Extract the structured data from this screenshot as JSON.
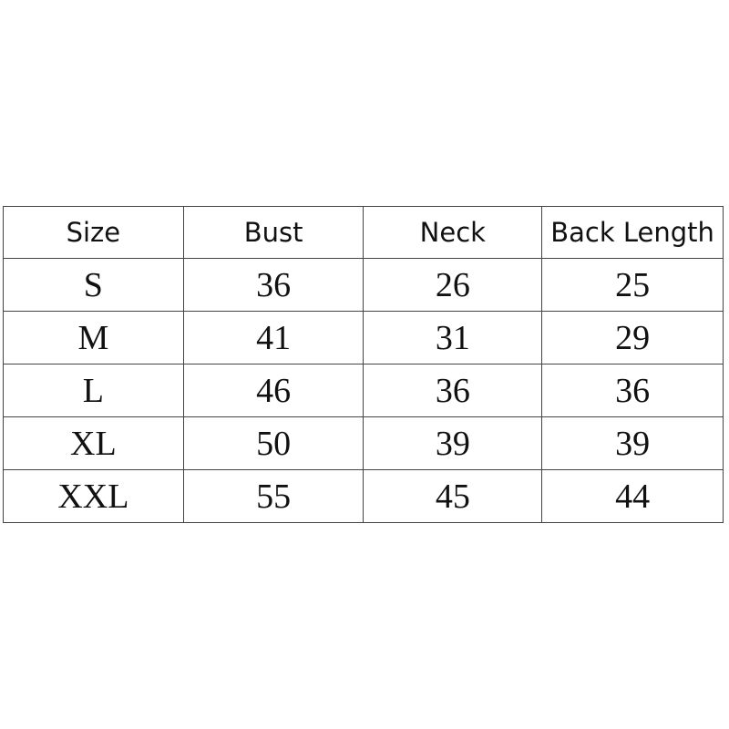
{
  "table": {
    "header": [
      "Size",
      "Bust",
      "Neck",
      "Back Length"
    ],
    "rows": [
      [
        "S",
        "36",
        "26",
        "25"
      ],
      [
        "M",
        "41",
        "31",
        "29"
      ],
      [
        "L",
        "46",
        "36",
        "36"
      ],
      [
        "XL",
        "50",
        "39",
        "39"
      ],
      [
        "XXL",
        "55",
        "45",
        "44"
      ]
    ]
  }
}
